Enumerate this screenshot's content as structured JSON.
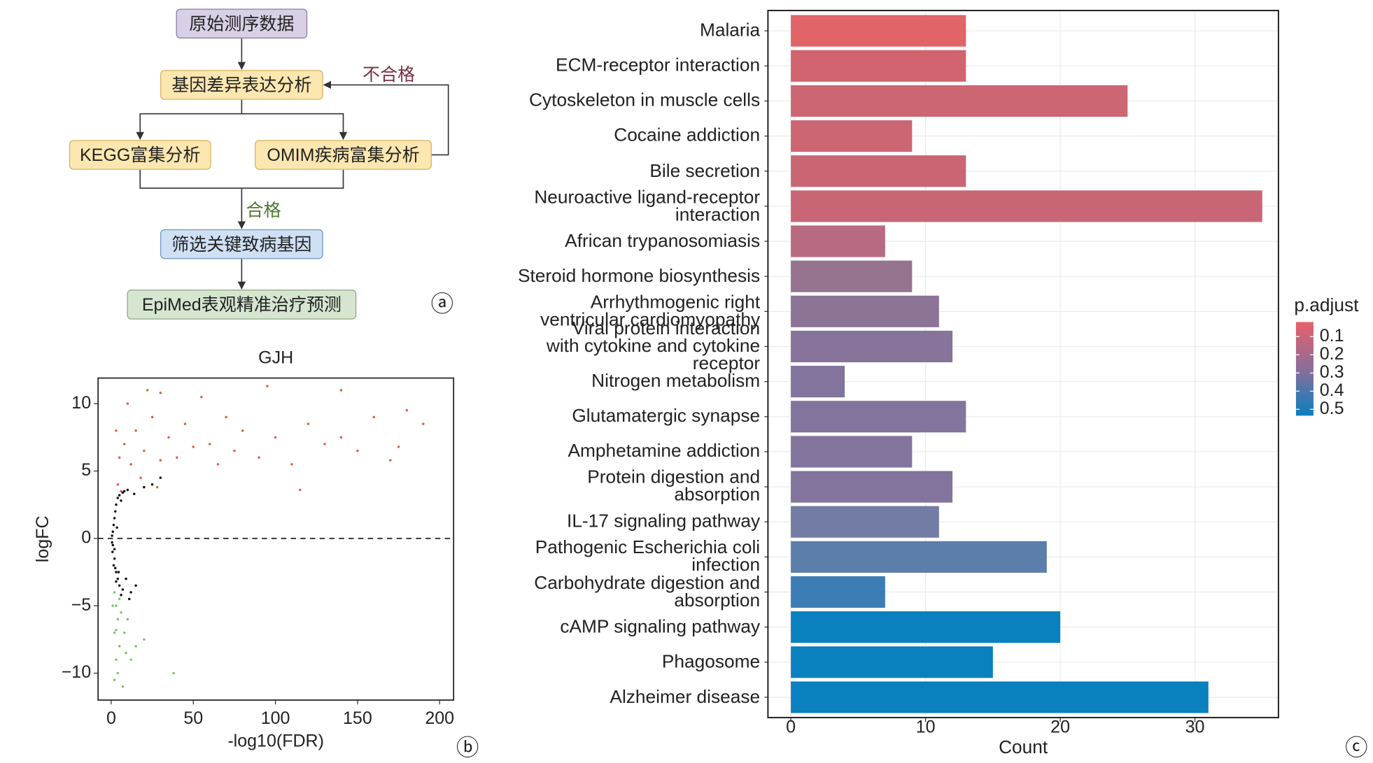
{
  "flowchart": {
    "nodes": [
      "原始测序数据",
      "基因差异表达分析",
      "KEGG富集分析",
      "OMIM疾病富集分析",
      "筛选关键致病基因",
      "EpiMed表观精准治疗预测"
    ],
    "edge_labels": [
      "不合格",
      "合格"
    ]
  },
  "panel_labels": [
    "ⓐ",
    "ⓑ",
    "ⓒ"
  ],
  "chart_data": [
    {
      "type": "scatter",
      "title": "GJH",
      "xlabel": "-log10(FDR)",
      "ylabel": "logFC",
      "xlim": [
        -8,
        208.5
      ],
      "ylim": [
        -12,
        11.9
      ],
      "xticks": [
        0,
        50,
        100,
        150,
        200
      ],
      "yticks": [
        {
          "value": -10,
          "label": "−10"
        },
        {
          "value": -5,
          "label": "−5"
        },
        0,
        5,
        10
      ],
      "hline": 0,
      "series": [
        {
          "color": "#d9604c",
          "x": [
            5,
            8,
            12,
            15,
            20,
            25,
            30,
            35,
            40,
            45,
            50,
            55,
            60,
            65,
            70,
            75,
            80,
            90,
            100,
            110,
            120,
            130,
            140,
            150,
            160,
            170,
            180,
            190,
            10,
            30,
            4,
            6,
            18,
            28,
            3,
            22,
            95,
            115,
            140,
            175
          ],
          "values": [
            6,
            7,
            5.5,
            8,
            6.5,
            9,
            5.8,
            7.5,
            6,
            8.5,
            6.8,
            10.5,
            7,
            5.5,
            9,
            6.5,
            8,
            6,
            7.5,
            5.5,
            8.5,
            7,
            11,
            6.5,
            9,
            5.8,
            9.5,
            8.5,
            10,
            10.8,
            4,
            3.5,
            4.5,
            3.8,
            8,
            11,
            11.3,
            3.6,
            7.5,
            6.8
          ]
        },
        {
          "color": "#111111",
          "x": [
            1,
            1,
            2,
            2,
            3,
            3,
            4,
            5,
            6,
            8,
            10,
            14,
            20,
            3,
            5,
            7,
            9,
            12,
            0.5,
            0.8,
            1.5,
            1.5,
            2.5,
            2.5,
            4,
            6,
            15,
            30,
            25,
            11,
            0.5,
            3.5,
            2,
            7,
            4.5
          ],
          "values": [
            0.5,
            -0.5,
            1.5,
            -1.5,
            2.5,
            -2.5,
            3,
            3.2,
            2.8,
            3.5,
            3.6,
            3.3,
            3.8,
            -3.2,
            -3.5,
            -3.8,
            -3,
            -4,
            0.2,
            -1,
            1,
            -2,
            2,
            -2.2,
            -3,
            -4.2,
            -3.5,
            4.5,
            4,
            -4.5,
            -0.3,
            0.8,
            -0.8,
            3.4,
            -2.5
          ]
        },
        {
          "color": "#7cc46a",
          "x": [
            2,
            3,
            4,
            2,
            5,
            3,
            6,
            4,
            8,
            10,
            12,
            7,
            1,
            15,
            20,
            38,
            3,
            5,
            9,
            2
          ],
          "values": [
            -4,
            -5,
            -6,
            -7,
            -8,
            -9,
            -5.5,
            -10,
            -7,
            -6,
            -9,
            -11,
            -5,
            -8,
            -7.5,
            -10,
            -6.8,
            -4.5,
            -8.5,
            -10.5
          ]
        }
      ]
    },
    {
      "type": "bar",
      "orientation": "horizontal",
      "xlabel": "Count",
      "xlim": [
        -1.7,
        36.2
      ],
      "xticks": [
        0,
        10,
        20,
        30
      ],
      "grid": true,
      "categories": [
        "Malaria",
        "ECM-receptor interaction",
        "Cytoskeleton in muscle cells",
        "Cocaine addiction",
        "Bile secretion",
        "Neuroactive ligand-receptor\ninteraction",
        "African trypanosomiasis",
        "Steroid hormone biosynthesis",
        "Arrhythmogenic right\nventricular cardiomyopathy",
        "Viral protein interaction\nwith cytokine and cytokine\nreceptor",
        "Nitrogen metabolism",
        "Glutamatergic synapse",
        "Amphetamine addiction",
        "Protein digestion and\nabsorption",
        "IL-17 signaling pathway",
        "Pathogenic Escherichia coli\ninfection",
        "Carbohydrate digestion and\nabsorption",
        "cAMP signaling pathway",
        "Phagosome",
        "Alzheimer disease"
      ],
      "values": [
        13,
        13,
        25,
        9,
        13,
        35,
        7,
        9,
        11,
        12,
        4,
        13,
        9,
        12,
        11,
        19,
        7,
        20,
        15,
        31
      ],
      "colors": [
        "#e06468",
        "#d2646f",
        "#cc6672",
        "#cc6672",
        "#ca6674",
        "#c96676",
        "#b86a80",
        "#967490",
        "#8c7496",
        "#88739a",
        "#82749c",
        "#82749c",
        "#82749c",
        "#82749c",
        "#727ca4",
        "#5c7eaa",
        "#3d7db6",
        "#0a80bf",
        "#0a80bf",
        "#0a80bf"
      ],
      "colorbar": {
        "title": "p.adjust",
        "lim": [
          0.02,
          0.535
        ],
        "ticks": [
          0.1,
          0.2,
          0.3,
          0.4,
          0.5
        ],
        "colors": [
          "#e8606a",
          "#8a6e99",
          "#0a7fc0"
        ]
      }
    }
  ]
}
